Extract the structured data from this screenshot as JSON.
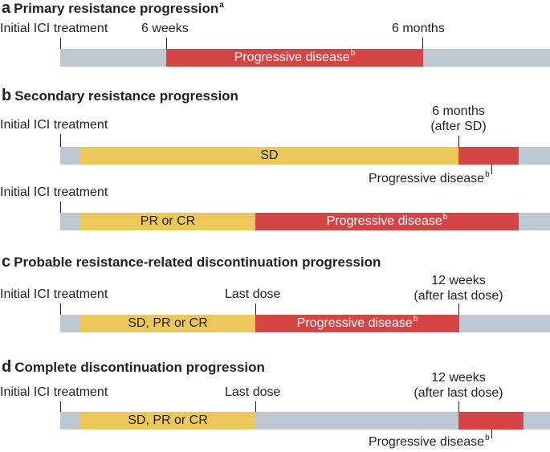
{
  "panel_a": {
    "letter": "a",
    "title": "Primary resistance progression",
    "title_sup": "a",
    "label_start": "Initial ICI treatment",
    "label_6w": "6 weeks",
    "label_6m": "6 months",
    "seg_pd": "Progressive disease",
    "seg_pd_sup": "b"
  },
  "panel_b": {
    "letter": "b",
    "title": "Secondary resistance progression",
    "row1": {
      "label_start": "Initial ICI treatment",
      "label_6m_line1": "6 months",
      "label_6m_line2": "(after SD)",
      "seg_sd": "SD",
      "label_pd": "Progressive disease",
      "label_pd_sup": "b"
    },
    "row2": {
      "label_start": "Initial ICI treatment",
      "seg_prcr": "PR or CR",
      "seg_pd": "Progressive disease",
      "seg_pd_sup": "b"
    }
  },
  "panel_c": {
    "letter": "c",
    "title": "Probable resistance-related discontinuation progression",
    "label_start": "Initial ICI treatment",
    "label_last": "Last dose",
    "label_12w_line1": "12 weeks",
    "label_12w_line2": "(after last dose)",
    "seg_sdprcr": "SD, PR or CR",
    "seg_pd": "Progressive disease",
    "seg_pd_sup": "b"
  },
  "panel_d": {
    "letter": "d",
    "title": "Complete discontinuation progression",
    "label_start": "Initial ICI treatment",
    "label_last": "Last dose",
    "label_12w_line1": "12 weeks",
    "label_12w_line2": "(after last dose)",
    "seg_sdprcr": "SD, PR or CR",
    "label_pd": "Progressive disease",
    "label_pd_sup": "b"
  },
  "colors": {
    "gray": "#bec8d3",
    "yellow": "#ecc75a",
    "red": "#d64545",
    "text": "#231f20"
  }
}
